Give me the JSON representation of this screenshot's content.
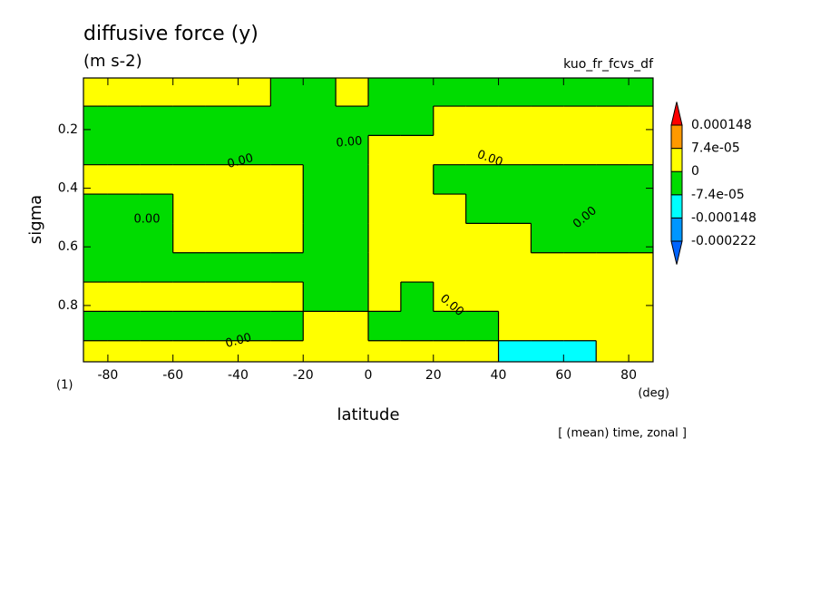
{
  "chart_data": {
    "type": "contour",
    "title": "diffusive force (y)",
    "subtitle": "(m s-2)",
    "variable": "kuo_fr_fcvs_df",
    "panel_label": "(1)",
    "xlabel": "latitude",
    "xunit": "(deg)",
    "ylabel": "sigma",
    "note": "[ (mean) time, zonal ]",
    "xlim": [
      -87.5,
      87.5
    ],
    "xticks": [
      -80,
      -60,
      -40,
      -20,
      0,
      20,
      40,
      60,
      80
    ],
    "ylim": [
      0.024,
      0.992
    ],
    "y_inverted": true,
    "yticks": [
      0.2,
      0.4,
      0.6,
      0.8
    ],
    "x": [
      -85,
      -75,
      -65,
      -55,
      -45,
      -35,
      -25,
      -15,
      -5,
      5,
      15,
      25,
      35,
      45,
      55,
      65,
      75,
      85
    ],
    "y": [
      0.07,
      0.17,
      0.27,
      0.37,
      0.47,
      0.57,
      0.67,
      0.77,
      0.87,
      0.97
    ],
    "z": [
      [
        3e-05,
        3e-05,
        3e-05,
        3e-05,
        3e-05,
        3e-05,
        -3e-05,
        -3e-05,
        3e-05,
        -3e-05,
        -3e-05,
        -3e-05,
        -3e-05,
        -3e-05,
        -3e-05,
        -3e-05,
        -3e-05,
        -3e-05
      ],
      [
        -3e-05,
        -3e-05,
        -3e-05,
        -3e-05,
        -3e-05,
        -3e-05,
        -3e-05,
        -3e-05,
        -3e-05,
        -3e-05,
        -3e-05,
        3e-05,
        3e-05,
        3e-05,
        3e-05,
        3e-05,
        3e-05,
        3e-05
      ],
      [
        -3e-05,
        -3e-05,
        -3e-05,
        -3e-05,
        -3e-05,
        -3e-05,
        -3e-05,
        -3e-05,
        -3e-05,
        3e-05,
        3e-05,
        3e-05,
        3e-05,
        3e-05,
        3e-05,
        3e-05,
        3e-05,
        3e-05
      ],
      [
        3e-05,
        3e-05,
        3e-05,
        3e-05,
        3e-05,
        3e-05,
        3e-05,
        -3e-05,
        -3e-05,
        3e-05,
        3e-05,
        -3e-05,
        -3e-05,
        -3e-05,
        -3e-05,
        -3e-05,
        -3e-05,
        -3e-05
      ],
      [
        -3e-05,
        -3e-05,
        -3e-05,
        3e-05,
        3e-05,
        3e-05,
        3e-05,
        -3e-05,
        -3e-05,
        3e-05,
        3e-05,
        3e-05,
        -3e-05,
        -3e-05,
        -3e-05,
        -3e-05,
        -3e-05,
        -3e-05
      ],
      [
        -3e-05,
        -3e-05,
        -3e-05,
        3e-05,
        3e-05,
        3e-05,
        3e-05,
        -3e-05,
        -3e-05,
        3e-05,
        3e-05,
        3e-05,
        3e-05,
        3e-05,
        -3e-05,
        -3e-05,
        -3e-05,
        -3e-05
      ],
      [
        -3e-05,
        -3e-05,
        -3e-05,
        -3e-05,
        -3e-05,
        -3e-05,
        -3e-05,
        -3e-05,
        -3e-05,
        3e-05,
        3e-05,
        3e-05,
        3e-05,
        3e-05,
        3e-05,
        3e-05,
        3e-05,
        3e-05
      ],
      [
        3e-05,
        3e-05,
        3e-05,
        3e-05,
        3e-05,
        3e-05,
        3e-05,
        -3e-05,
        -3e-05,
        3e-05,
        -3e-05,
        3e-05,
        3e-05,
        3e-05,
        3e-05,
        3e-05,
        3e-05,
        3e-05
      ],
      [
        -3e-05,
        -3e-05,
        -3e-05,
        -3e-05,
        -3e-05,
        -3e-05,
        -3e-05,
        3e-05,
        3e-05,
        -3e-05,
        -3e-05,
        -3e-05,
        -3e-05,
        3e-05,
        3e-05,
        3e-05,
        3e-05,
        3e-05
      ],
      [
        3e-05,
        3e-05,
        3e-05,
        3e-05,
        3e-05,
        3e-05,
        3e-05,
        3e-05,
        3e-05,
        3e-05,
        3e-05,
        3e-05,
        3e-05,
        -0.0001,
        -0.0001,
        -0.0001,
        3e-05,
        3e-05
      ]
    ],
    "levels": [
      -0.000222,
      -0.000148,
      {
        "value": -7.4e-05,
        "label": "-7.4e-05"
      },
      0,
      {
        "value": 7.4e-05,
        "label": "7.4e-05"
      },
      0.000148
    ],
    "colors": [
      "#0064ff",
      "#0096ff",
      "#00ffff",
      "#00dc00",
      "#ffff00",
      "#ff9900",
      "#ff0000"
    ],
    "contour_level": {
      "value": 0,
      "label": "0.00"
    }
  }
}
